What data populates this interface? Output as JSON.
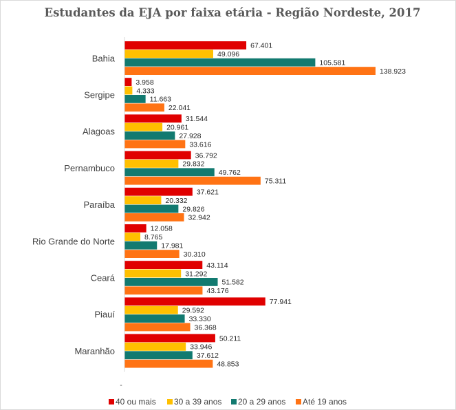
{
  "chart_data": {
    "type": "bar",
    "orientation": "horizontal",
    "title": "Estudantes da EJA por faixa etária - Região Nordeste, 2017",
    "categories": [
      "Bahia",
      "Sergipe",
      "Alagoas",
      "Pernambuco",
      "Paraíba",
      "Rio Grande do Norte",
      "Ceará",
      "Piauí",
      "Maranhão"
    ],
    "series": [
      {
        "name": "40 ou mais",
        "color": "#e00000",
        "values": [
          67401,
          3958,
          31544,
          36792,
          37621,
          12058,
          43114,
          77941,
          50211
        ],
        "labels": [
          "67.401",
          "3.958",
          "31.544",
          "36.792",
          "37.621",
          "12.058",
          "43.114",
          "77.941",
          "50.211"
        ]
      },
      {
        "name": "30 a 39 anos",
        "color": "#ffc000",
        "values": [
          49096,
          4333,
          20961,
          29832,
          20332,
          8765,
          31292,
          29592,
          33946
        ],
        "labels": [
          "49.096",
          "4.333",
          "20.961",
          "29.832",
          "20.332",
          "8.765",
          "31.292",
          "29.592",
          "33.946"
        ]
      },
      {
        "name": "20 a 29 anos",
        "color": "#127a70",
        "values": [
          105581,
          11663,
          27928,
          49762,
          29826,
          17981,
          51582,
          33330,
          37612
        ],
        "labels": [
          "105.581",
          "11.663",
          "27.928",
          "49.762",
          "29.826",
          "17.981",
          "51.582",
          "33.330",
          "37.612"
        ]
      },
      {
        "name": "Até 19 anos",
        "color": "#ff7314",
        "values": [
          138923,
          22041,
          33616,
          75311,
          32942,
          30310,
          43176,
          36368,
          48853
        ],
        "labels": [
          "138.923",
          "22.041",
          "33.616",
          "75.311",
          "32.942",
          "30.310",
          "43.176",
          "36.368",
          "48.853"
        ]
      }
    ],
    "x_axis_label": "-",
    "xlim": [
      0,
      140000
    ],
    "grid": false,
    "legend_position": "bottom"
  }
}
